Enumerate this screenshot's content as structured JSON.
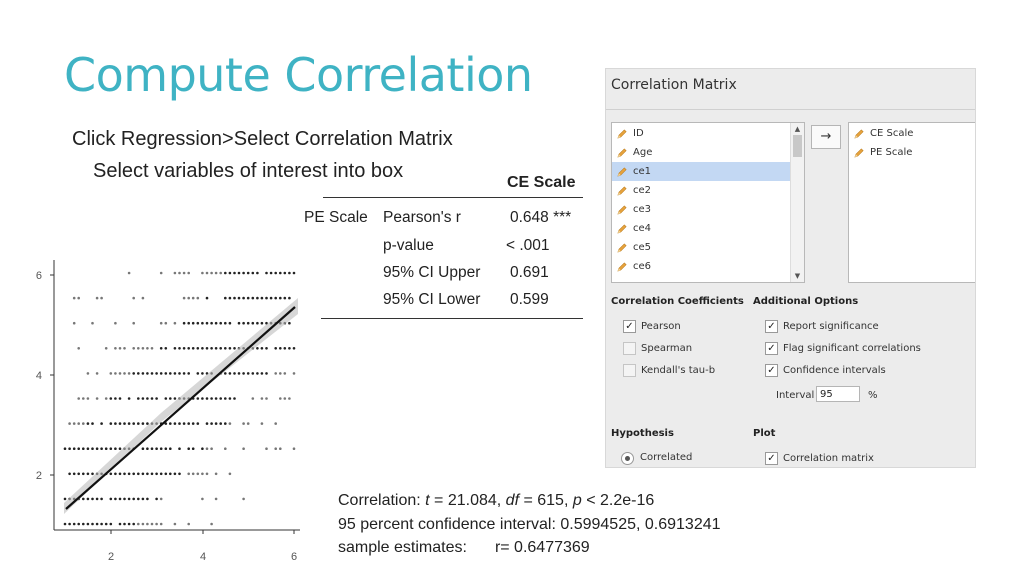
{
  "slide": {
    "title": "Compute Correlation",
    "instruction_1": "Click Regression>Select Correlation Matrix",
    "instruction_2": "Select variables of interest into box"
  },
  "result_table": {
    "column_header": "CE Scale",
    "row_variable": "PE Scale",
    "rows": [
      {
        "label": "Pearson's r",
        "value": "0.648 ***"
      },
      {
        "label": "p-value",
        "value": "< .001"
      },
      {
        "label": "95% CI Upper",
        "value": "0.691"
      },
      {
        "label": "95% CI Lower",
        "value": "0.599"
      }
    ]
  },
  "scatter": {
    "x_ticks": [
      "2",
      "4",
      "6"
    ],
    "y_ticks": [
      "6",
      "4",
      "2"
    ]
  },
  "output": {
    "line1_prefix": "Correlation: ",
    "t_symbol": "t",
    "t_value": " = 21.084, ",
    "df_symbol": "df",
    "df_value": " = 615, ",
    "p_symbol": "p",
    "p_value": " < 2.2e-16",
    "line2": "95 percent confidence interval: 0.5994525, 0.6913241",
    "line3_label": "sample estimates:",
    "line3_value": "r= 0.6477369"
  },
  "panel": {
    "title": "Correlation Matrix",
    "variables": [
      "ID",
      "Age",
      "ce1",
      "ce2",
      "ce3",
      "ce4",
      "ce5",
      "ce6"
    ],
    "selected_variable_index": 2,
    "selected_variables": [
      "CE Scale",
      "PE Scale"
    ],
    "move_arrow": "→",
    "correlation_coefficients": {
      "heading": "Correlation Coefficients",
      "pearson": "Pearson",
      "spearman": "Spearman",
      "kendall": "Kendall's tau-b"
    },
    "additional_options": {
      "heading": "Additional Options",
      "report_significance": "Report significance",
      "flag_significant": "Flag significant correlations",
      "confidence_intervals": "Confidence intervals",
      "interval_label": "Interval",
      "interval_value": "95",
      "interval_unit": "%"
    },
    "hypothesis": {
      "heading": "Hypothesis",
      "correlated": "Correlated"
    },
    "plot": {
      "heading": "Plot",
      "correlation_matrix": "Correlation matrix"
    },
    "icon_names": {
      "variable": "pencil-ruler-icon",
      "check": "check-icon"
    },
    "colors": {
      "title": "#3fb3c4",
      "selected_row": "#c3d8f3",
      "variable_icon": "#e8a33c"
    }
  }
}
